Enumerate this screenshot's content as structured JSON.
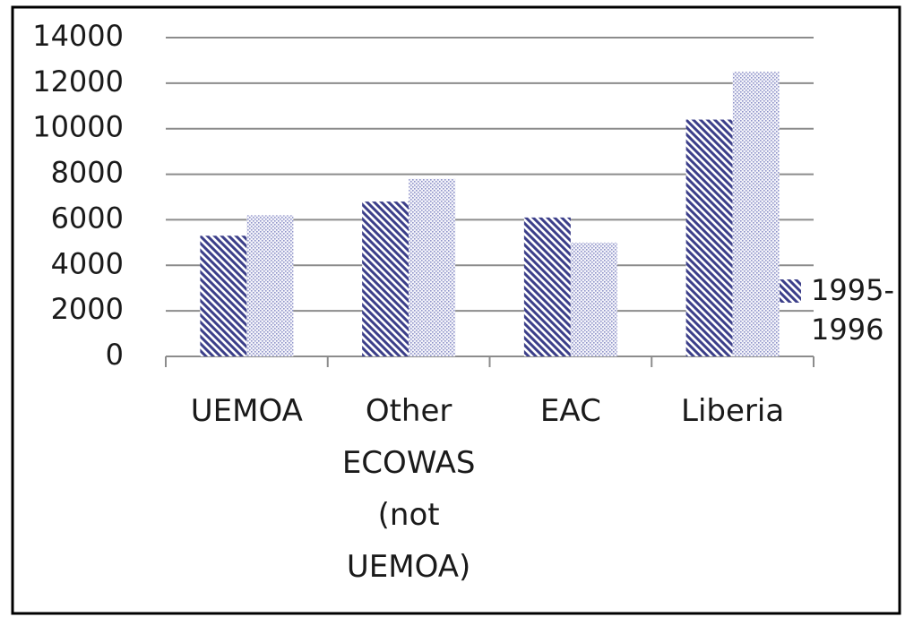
{
  "chart_data": {
    "type": "bar",
    "categories": [
      "UEMOA",
      "Other ECOWAS (not UEMOA)",
      "EAC",
      "Liberia"
    ],
    "series": [
      {
        "name": "1995-1996",
        "color": "#3c3f8a",
        "values": [
          5300,
          6800,
          6100,
          10400
        ]
      },
      {
        "color": "#8f93c9",
        "values": [
          6200,
          7800,
          5000,
          12500
        ]
      }
    ],
    "ylim": [
      0,
      14000
    ],
    "yticks": [
      0,
      2000,
      4000,
      6000,
      8000,
      10000,
      12000,
      14000
    ],
    "grid": true
  }
}
